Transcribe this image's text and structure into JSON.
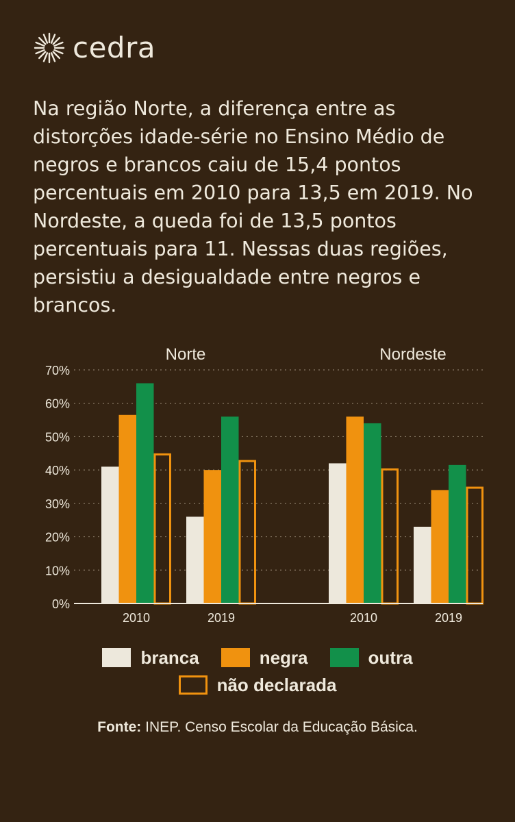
{
  "brand": {
    "name": "cedra",
    "logo_icon": "sun-burst-icon"
  },
  "intro": "Na região Norte, a diferença entre as distorções idade-série no Ensino Médio de negros e brancos caiu de 15,4 pontos percentuais em 2010 para 13,5 em 2019. No Nordeste, a queda foi de 13,5 pontos percentuais para 11. Nessas duas regiões, persistiu a desigualdade entre negros e brancos.",
  "chart_data": {
    "type": "bar",
    "groups": [
      {
        "name": "Norte",
        "categories": [
          "2010",
          "2019"
        ]
      },
      {
        "name": "Nordeste",
        "categories": [
          "2010",
          "2019"
        ]
      }
    ],
    "series": [
      {
        "name": "branca",
        "color": "#ede8dc",
        "style": "filled",
        "values": [
          [
            41,
            26
          ],
          [
            42,
            23
          ]
        ]
      },
      {
        "name": "negra",
        "color": "#f0920f",
        "style": "filled",
        "values": [
          [
            56.5,
            40
          ],
          [
            56,
            34
          ]
        ]
      },
      {
        "name": "outra",
        "color": "#12904a",
        "style": "filled",
        "values": [
          [
            66,
            56
          ],
          [
            54,
            41.5
          ]
        ]
      },
      {
        "name": "não declarada",
        "color": "#f0920f",
        "style": "outline",
        "values": [
          [
            45,
            43
          ],
          [
            40.5,
            35
          ]
        ]
      }
    ],
    "yticks": [
      "0%",
      "10%",
      "20%",
      "30%",
      "40%",
      "50%",
      "60%",
      "70%"
    ],
    "ylim": [
      0,
      70
    ],
    "grid": "horizontal-dotted",
    "legend": "bottom"
  },
  "legend": {
    "branca": "branca",
    "negra": "negra",
    "outra": "outra",
    "nao_declarada": "não declarada"
  },
  "source": {
    "label": "Fonte:",
    "text": "INEP. Censo Escolar da Educação Básica."
  },
  "colors": {
    "background": "#342312",
    "text": "#efe9dc",
    "grid": "#8a7c68"
  }
}
